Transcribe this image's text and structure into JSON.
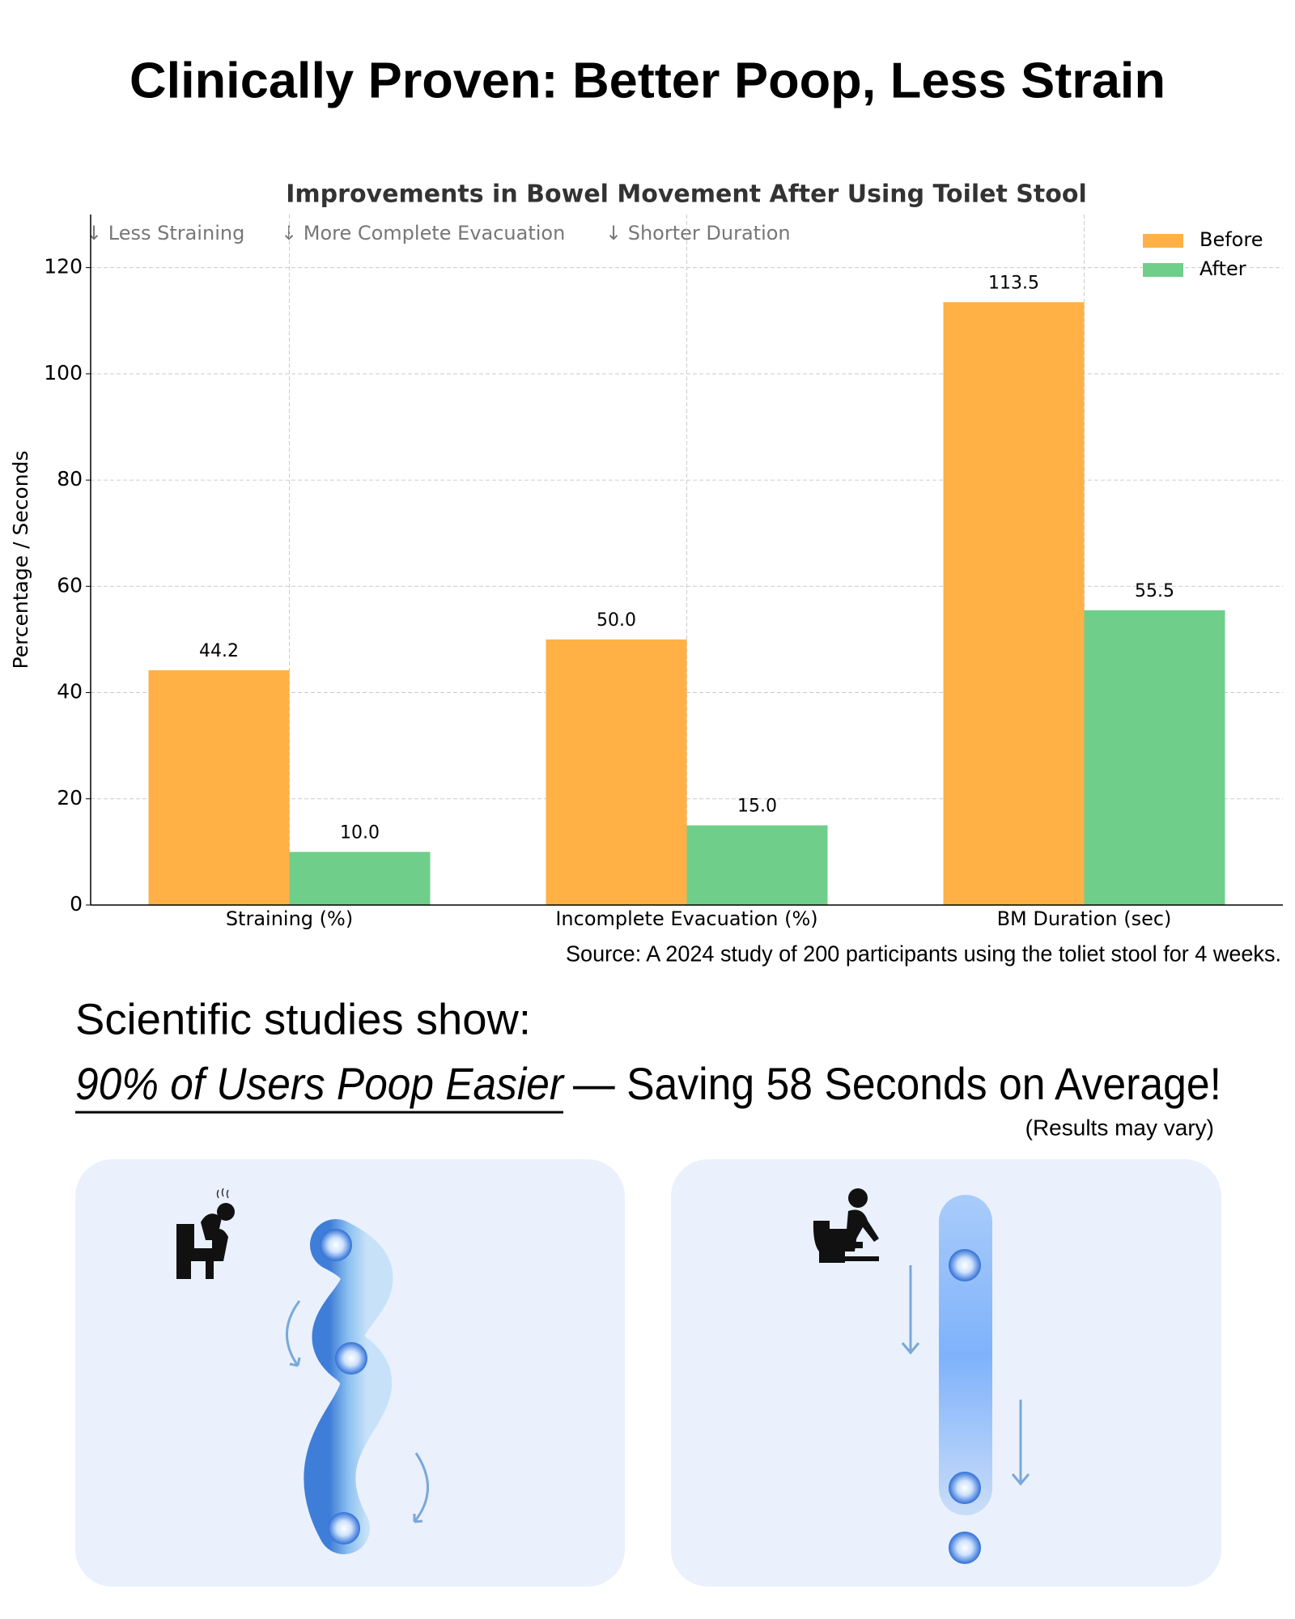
{
  "page_title": "Clinically Proven: Better Poop, Less Strain",
  "chart_data": {
    "type": "bar",
    "title": "Improvements in Bowel Movement After Using Toilet Stool",
    "y_label": "Percentage / Seconds",
    "annotations": [
      "↓ Less Straining",
      "↓ More Complete Evacuation",
      "↓ Shorter Duration"
    ],
    "categories": [
      "Straining (%)",
      "Incomplete Evacuation (%)",
      "BM Duration (sec)"
    ],
    "series": [
      {
        "name": "Before",
        "color": "#ffb146",
        "values": [
          44.2,
          50,
          113.5
        ],
        "value_labels": [
          "44.2",
          "50.0",
          "113.5"
        ]
      },
      {
        "name": "After",
        "color": "#6fcf8a",
        "values": [
          10,
          15,
          55.5
        ],
        "value_labels": [
          "10.0",
          "15.0",
          "55.5"
        ]
      }
    ],
    "ylim": [
      0,
      130
    ],
    "yticks": [
      0,
      20,
      40,
      60,
      80,
      100,
      120
    ],
    "grid": true,
    "legend": "upper right",
    "source": "Source: A 2024 study of 200 participants using the toliet stool for 4 weeks."
  },
  "claims": {
    "intro": "Scientific studies show:",
    "highlight": "90% of Users Poop Easier",
    "rest": "— Saving 58 Seconds on Average!",
    "disclaimer": "(Results may vary)"
  }
}
